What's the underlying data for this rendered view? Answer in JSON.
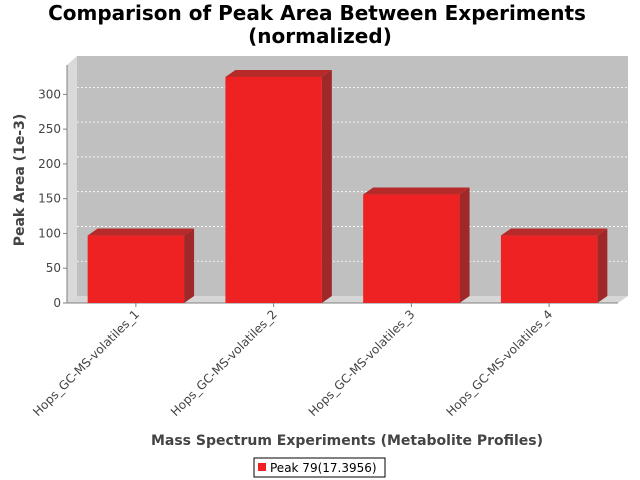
{
  "chart_data": {
    "type": "bar",
    "title_line1": "Comparison of Peak Area Between Experiments",
    "title_line2": "(normalized)",
    "xlabel": "Mass Spectrum Experiments (Metabolite Profiles)",
    "ylabel": "Peak Area (1e-3)",
    "categories": [
      "Hops_GC-MS-volatiles_1",
      "Hops_GC-MS-volatiles_2",
      "Hops_GC-MS-volatiles_3",
      "Hops_GC-MS-volatiles_4"
    ],
    "series": [
      {
        "name": "Peak 79(17.3956)",
        "values": [
          97,
          325,
          156,
          97
        ],
        "color": "#ee2222"
      }
    ],
    "y_ticks": [
      0,
      50,
      100,
      150,
      200,
      250,
      300
    ],
    "ylim": [
      0,
      340
    ],
    "grid": true,
    "legend_position": "bottom"
  }
}
